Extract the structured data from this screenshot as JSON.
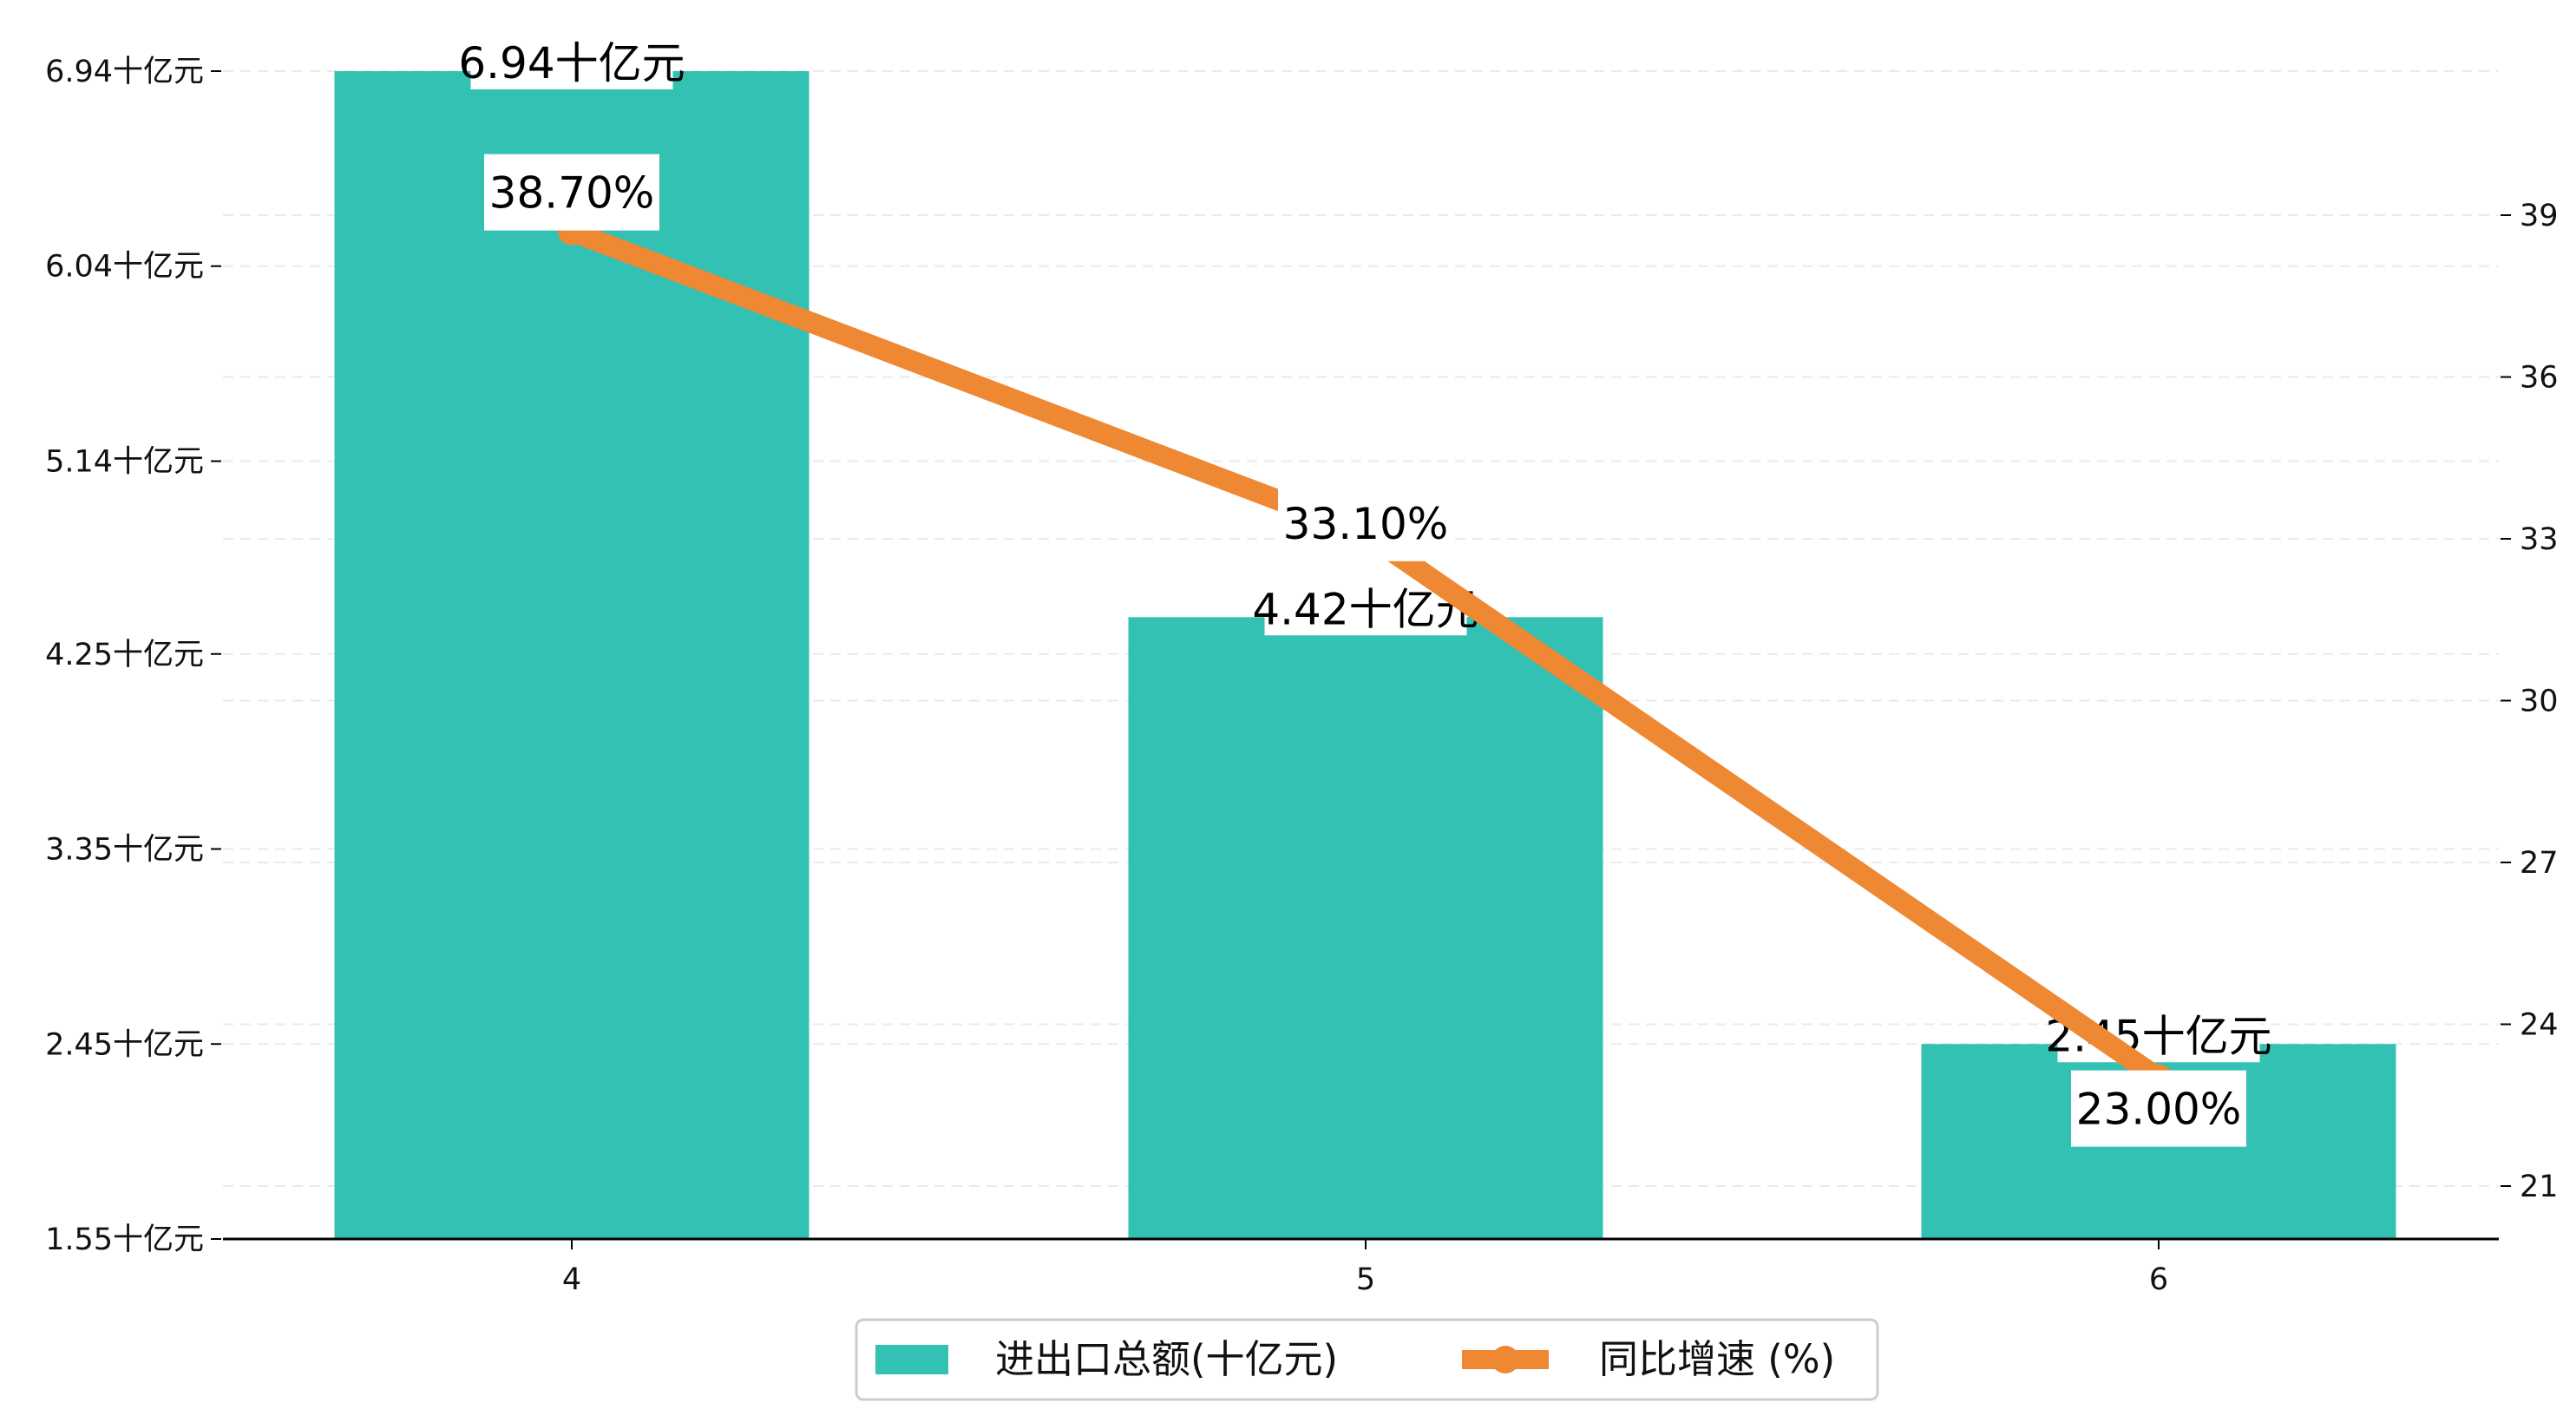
{
  "chart_data": {
    "type": "bar",
    "categories": [
      "4",
      "5",
      "6"
    ],
    "series": [
      {
        "name": "进出口总额(十亿元)",
        "kind": "bar",
        "axis": "left",
        "values": [
          6.94,
          4.42,
          2.45
        ],
        "labels": [
          "6.94十亿元",
          "4.42十亿元",
          "2.45十亿元"
        ],
        "color": "#33c1b4"
      },
      {
        "name": "同比增速 (%)",
        "kind": "line",
        "axis": "right",
        "values": [
          38.7,
          33.1,
          23.0
        ],
        "labels": [
          "38.70%",
          "33.10%",
          "23.00%"
        ],
        "color": "#ee8833"
      }
    ],
    "y_left": {
      "ylim": [
        1.55,
        6.94
      ],
      "ticks": [
        1.55,
        2.45,
        3.35,
        4.25,
        5.14,
        6.04,
        6.94
      ],
      "tick_labels": [
        "1.55十亿元",
        "2.45十亿元",
        "3.35十亿元",
        "4.25十亿元",
        "5.14十亿元",
        "6.04十亿元",
        "6.94十亿元"
      ]
    },
    "y_right": {
      "ylim": [
        20.0,
        41.7
      ],
      "ticks": [
        21,
        24,
        27,
        30,
        33,
        36,
        39
      ],
      "tick_labels": [
        "21",
        "24",
        "27",
        "30",
        "33",
        "36",
        "39"
      ]
    },
    "title": "",
    "xlabel": "",
    "ylabel": "",
    "grid": true,
    "legend_position": "bottom-center"
  }
}
